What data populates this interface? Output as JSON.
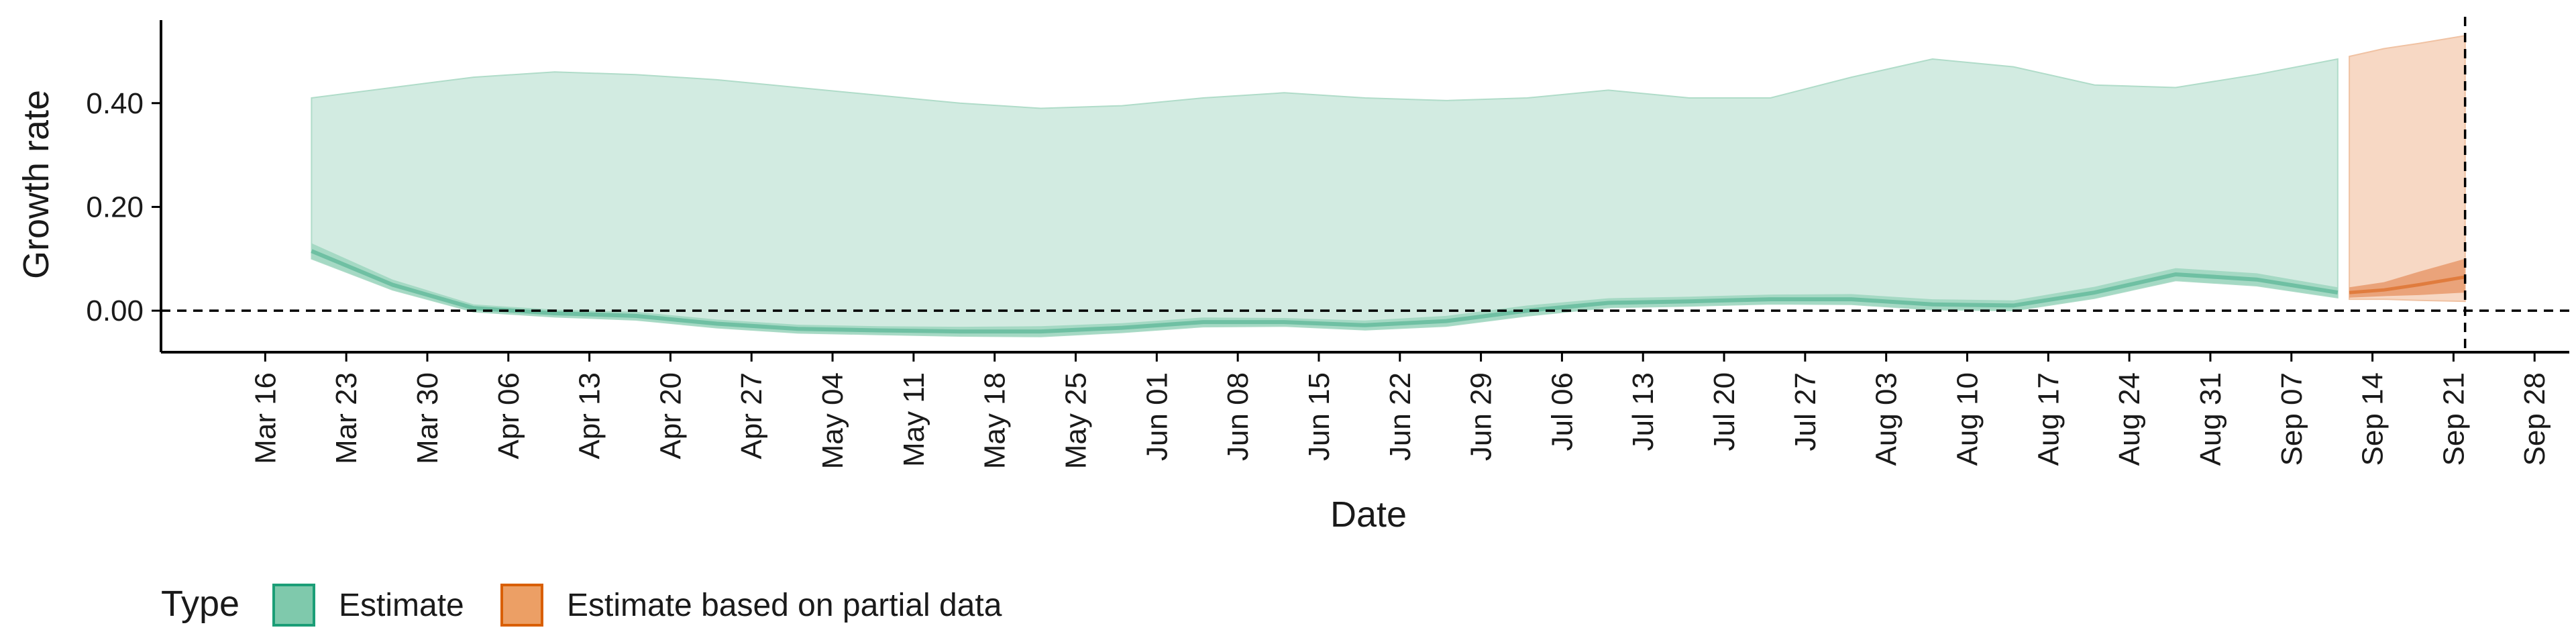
{
  "chart_data": {
    "type": "area",
    "xlabel": "Date",
    "ylabel": "Growth rate",
    "ylim": [
      -0.08,
      0.56
    ],
    "y_ticks": [
      0.0,
      0.2,
      0.4
    ],
    "y_tick_labels": [
      "0.00",
      "0.20",
      "0.40"
    ],
    "x_ticks": [
      "2020-03-16",
      "2020-03-23",
      "2020-03-30",
      "2020-04-06",
      "2020-04-13",
      "2020-04-20",
      "2020-04-27",
      "2020-05-04",
      "2020-05-11",
      "2020-05-18",
      "2020-05-25",
      "2020-06-01",
      "2020-06-08",
      "2020-06-15",
      "2020-06-22",
      "2020-06-29",
      "2020-07-06",
      "2020-07-13",
      "2020-07-20",
      "2020-07-27",
      "2020-08-03",
      "2020-08-10",
      "2020-08-17",
      "2020-08-24",
      "2020-08-31",
      "2020-09-07",
      "2020-09-14",
      "2020-09-21",
      "2020-09-28"
    ],
    "x_tick_labels": [
      "Mar 16",
      "Mar 23",
      "Mar 30",
      "Apr 06",
      "Apr 13",
      "Apr 20",
      "Apr 27",
      "May 04",
      "May 11",
      "May 18",
      "May 25",
      "Jun 01",
      "Jun 08",
      "Jun 15",
      "Jun 22",
      "Jun 29",
      "Jul 06",
      "Jul 13",
      "Jul 20",
      "Jul 27",
      "Aug 03",
      "Aug 10",
      "Aug 17",
      "Aug 24",
      "Aug 31",
      "Sep 07",
      "Sep 14",
      "Sep 21",
      "Sep 28"
    ],
    "xlim": [
      "2020-03-07",
      "2020-10-01"
    ],
    "hline": 0.0,
    "vline": "2020-09-22",
    "legend_position": "bottom-left",
    "series": [
      {
        "name": "Estimate",
        "color": "#1b9e77",
        "x": [
          "2020-03-20",
          "2020-03-27",
          "2020-04-03",
          "2020-04-10",
          "2020-04-17",
          "2020-04-24",
          "2020-05-01",
          "2020-05-08",
          "2020-05-15",
          "2020-05-22",
          "2020-05-29",
          "2020-06-05",
          "2020-06-12",
          "2020-06-19",
          "2020-06-26",
          "2020-07-03",
          "2020-07-10",
          "2020-07-17",
          "2020-07-24",
          "2020-07-31",
          "2020-08-07",
          "2020-08-14",
          "2020-08-21",
          "2020-08-28",
          "2020-09-04",
          "2020-09-11"
        ],
        "median": [
          0.115,
          0.05,
          0.005,
          -0.005,
          -0.01,
          -0.025,
          -0.035,
          -0.038,
          -0.04,
          -0.04,
          -0.033,
          -0.022,
          -0.022,
          -0.028,
          -0.02,
          0.0,
          0.015,
          0.018,
          0.022,
          0.022,
          0.012,
          0.01,
          0.035,
          0.07,
          0.06,
          0.035
        ],
        "lower_90": [
          0.1,
          0.04,
          -0.002,
          -0.012,
          -0.018,
          -0.033,
          -0.043,
          -0.046,
          -0.049,
          -0.05,
          -0.042,
          -0.031,
          -0.03,
          -0.037,
          -0.03,
          -0.01,
          0.006,
          0.009,
          0.013,
          0.012,
          0.002,
          0.0,
          0.024,
          0.058,
          0.048,
          0.025
        ],
        "upper_90": [
          0.13,
          0.06,
          0.012,
          0.002,
          -0.002,
          -0.017,
          -0.027,
          -0.03,
          -0.031,
          -0.03,
          -0.024,
          -0.013,
          -0.014,
          -0.019,
          -0.01,
          0.01,
          0.024,
          0.027,
          0.031,
          0.032,
          0.022,
          0.02,
          0.046,
          0.082,
          0.072,
          0.045
        ],
        "upper_outer": [
          0.41,
          0.43,
          0.45,
          0.46,
          0.455,
          0.445,
          0.43,
          0.415,
          0.4,
          0.39,
          0.395,
          0.41,
          0.42,
          0.41,
          0.405,
          0.41,
          0.425,
          0.41,
          0.41,
          0.45,
          0.485,
          0.47,
          0.435,
          0.43,
          0.455,
          0.485
        ]
      },
      {
        "name": "Estimate based on partial data",
        "color": "#d95f02",
        "x": [
          "2020-09-12",
          "2020-09-15",
          "2020-09-18",
          "2020-09-22"
        ],
        "median": [
          0.035,
          0.04,
          0.05,
          0.065
        ],
        "lower_90": [
          0.025,
          0.028,
          0.03,
          0.035
        ],
        "upper_90": [
          0.045,
          0.055,
          0.075,
          0.1
        ],
        "lower_outer": [
          0.022,
          0.022,
          0.02,
          0.018
        ],
        "upper_outer": [
          0.49,
          0.505,
          0.515,
          0.53
        ]
      }
    ]
  },
  "legend": {
    "title": "Type",
    "items": [
      {
        "label": "Estimate",
        "fill": "#7fc9ac",
        "stroke": "#1b9e77"
      },
      {
        "label": "Estimate based on partial data",
        "fill": "#ec9f65",
        "stroke": "#d95f02"
      }
    ]
  }
}
